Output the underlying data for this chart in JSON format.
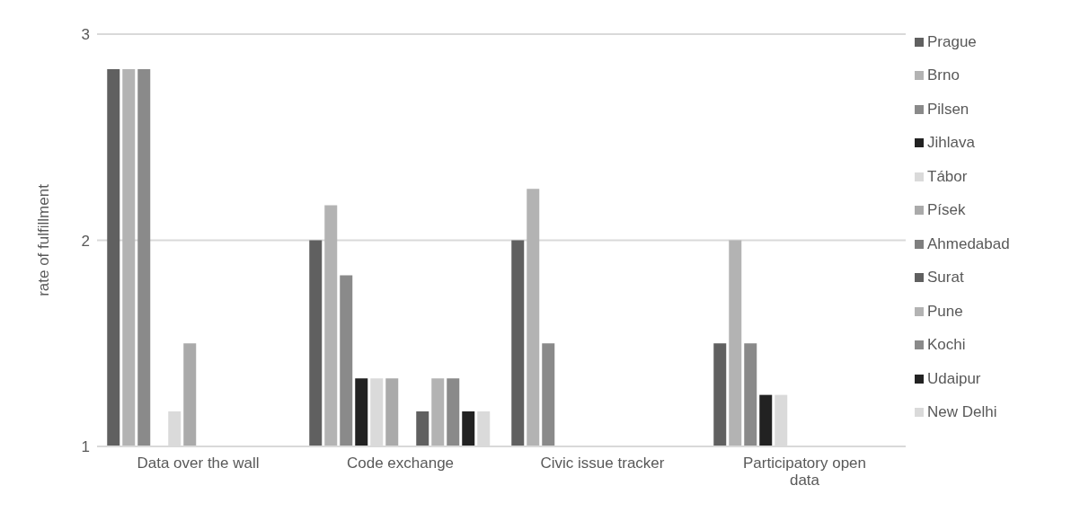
{
  "chart_data": {
    "type": "bar",
    "ylabel": "rate of fulfillment",
    "categories": [
      "Data over the wall",
      "Code exchange",
      "Civic issue tracker",
      "Participatory open data"
    ],
    "series": [
      {
        "name": "Prague",
        "color": "#606060",
        "values": [
          2.83,
          2,
          2,
          1.5
        ]
      },
      {
        "name": "Brno",
        "color": "#b3b3b3",
        "values": [
          2.83,
          2.17,
          2.25,
          2
        ]
      },
      {
        "name": "Pilsen",
        "color": "#8a8a8a",
        "values": [
          2.83,
          1.83,
          1.5,
          1.5
        ]
      },
      {
        "name": "Jihlava",
        "color": "#222222",
        "values": [
          null,
          1.33,
          null,
          1.25
        ]
      },
      {
        "name": "Tábor",
        "color": "#dadada",
        "values": [
          1.17,
          1.33,
          null,
          1.25
        ]
      },
      {
        "name": "Písek",
        "color": "#aaaaaa",
        "values": [
          1.5,
          1.33,
          null,
          null
        ]
      },
      {
        "name": "Ahmedabad",
        "color": "#7f7f7f",
        "values": [
          null,
          null,
          null,
          null
        ]
      },
      {
        "name": "Surat",
        "color": "#606060",
        "values": [
          null,
          1.17,
          null,
          null
        ]
      },
      {
        "name": "Pune",
        "color": "#b3b3b3",
        "values": [
          null,
          1.33,
          null,
          null
        ]
      },
      {
        "name": "Kochi",
        "color": "#8a8a8a",
        "values": [
          null,
          1.33,
          null,
          null
        ]
      },
      {
        "name": "Udaipur",
        "color": "#222222",
        "values": [
          null,
          1.17,
          null,
          null
        ]
      },
      {
        "name": "New Delhi",
        "color": "#dadada",
        "values": [
          null,
          1.17,
          null,
          null
        ]
      }
    ],
    "ylim": [
      1,
      3
    ],
    "yticks": [
      1,
      2,
      3
    ],
    "grid": "y",
    "legend": "right"
  }
}
